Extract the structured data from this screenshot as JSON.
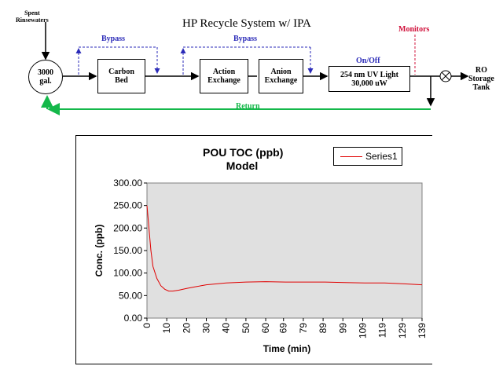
{
  "diagram": {
    "title": "HP Recycle System w/ IPA",
    "source_label": [
      "Spent",
      "Rinsewaters"
    ],
    "tank": [
      "3000",
      "gal."
    ],
    "carbon_bed": [
      "Carbon",
      "Bed"
    ],
    "action_exchange": [
      "Action",
      "Exchange"
    ],
    "anion_exchange": [
      "Anion",
      "Exchange"
    ],
    "uv_light": [
      "254 nm UV Light",
      "30,000 uW"
    ],
    "bypass_label_1": "Bypass",
    "bypass_label_2": "Bypass",
    "onoff_label": "On/Off",
    "monitors_label": "Monitors",
    "ro_label": [
      "RO",
      "Storage",
      "Tank"
    ],
    "return_label": "Return",
    "colors": {
      "bypass": "#2b2bb8",
      "monitors": "#d0103a",
      "return": "#14b84a"
    }
  },
  "chart_data": {
    "type": "line",
    "title": [
      "POU TOC (ppb)",
      "Model"
    ],
    "xlabel": "Time (min)",
    "ylabel": "Conc. (ppb)",
    "ylim": [
      0,
      300
    ],
    "xlim": [
      0,
      139
    ],
    "yticks": [
      "0.00",
      "50.00",
      "100.00",
      "150.00",
      "200.00",
      "250.00",
      "300.00"
    ],
    "xticks": [
      "0",
      "10",
      "20",
      "30",
      "40",
      "50",
      "60",
      "69",
      "79",
      "89",
      "99",
      "109",
      "119",
      "129",
      "139"
    ],
    "legend_position": "top-right",
    "grid": false,
    "series": [
      {
        "name": "Series1",
        "color": "#e00000",
        "x": [
          0,
          1,
          2,
          3,
          5,
          7,
          9,
          11,
          13,
          16,
          20,
          25,
          30,
          40,
          50,
          60,
          70,
          80,
          90,
          100,
          110,
          120,
          130,
          139
        ],
        "y": [
          250,
          200,
          150,
          115,
          88,
          72,
          64,
          60,
          60,
          62,
          66,
          70,
          74,
          78,
          80,
          81,
          80,
          80,
          80,
          79,
          78,
          78,
          76,
          74
        ]
      }
    ]
  }
}
